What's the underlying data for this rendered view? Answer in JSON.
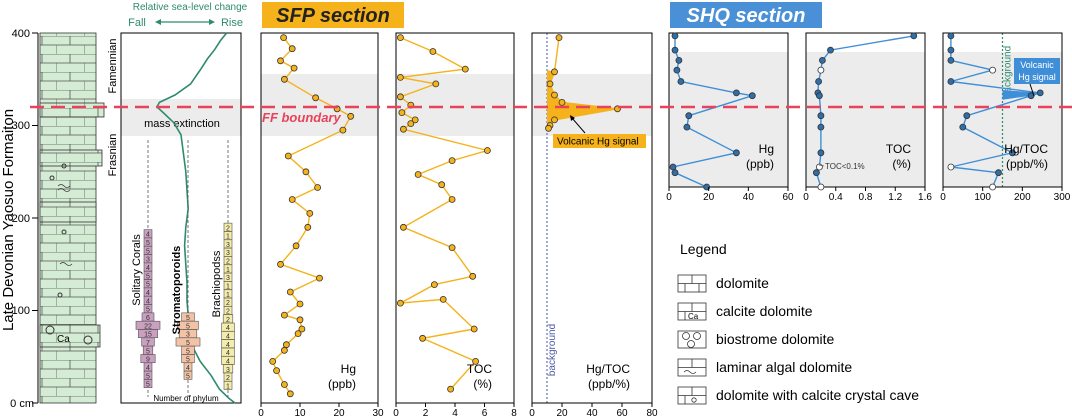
{
  "colors": {
    "sfp_line": "#f5b21a",
    "sfp_title_bg": "#f5b21a",
    "shq_line": "#3f8fd8",
    "shq_title_bg": "#4a90d6",
    "boundary": "#e8425c",
    "green_curve": "#2e8b6e",
    "litho_fill": "#d4ecd4",
    "grey_band": "#ececec",
    "corals": "#caa0c0",
    "stroma": "#f3c3a6",
    "brachio": "#f3ecaa",
    "background_line_sfp": "#4a5aa8",
    "background_line_shq": "#2e8b6e",
    "volcanic_shq": "#3f8fd8"
  },
  "depth_axis": {
    "label": "Late Devonian Yaosuo Formaiton",
    "ticks": [
      "400",
      "300",
      "200",
      "100",
      "0 cm"
    ],
    "stage_upper": "Famennian",
    "stage_lower": "Frasnian"
  },
  "sealevel": {
    "title": "Relative sea-level change",
    "fall": "Fall",
    "rise": "Rise",
    "extinction": "mass extinction",
    "phylum_axis": "Number of phylum",
    "corals_label": "Solitary Corals",
    "stroma_label": "Stromatoporoids",
    "brachio_label": "Brachiopodss",
    "curve": [
      [
        400,
        0.88
      ],
      [
        392,
        0.83
      ],
      [
        382,
        0.78
      ],
      [
        372,
        0.72
      ],
      [
        360,
        0.66
      ],
      [
        345,
        0.58
      ],
      [
        333,
        0.45
      ],
      [
        325,
        0.32
      ],
      [
        320,
        0.3
      ],
      [
        313,
        0.36
      ],
      [
        303,
        0.44
      ],
      [
        290,
        0.5
      ],
      [
        270,
        0.52
      ],
      [
        250,
        0.54
      ],
      [
        230,
        0.55
      ],
      [
        210,
        0.56
      ],
      [
        190,
        0.54
      ],
      [
        170,
        0.53
      ],
      [
        150,
        0.54
      ],
      [
        130,
        0.55
      ],
      [
        110,
        0.55
      ],
      [
        95,
        0.56
      ],
      [
        80,
        0.56
      ],
      [
        60,
        0.6
      ],
      [
        45,
        0.66
      ],
      [
        30,
        0.75
      ],
      [
        15,
        0.82
      ],
      [
        5,
        0.9
      ],
      [
        0,
        0.95
      ]
    ],
    "corals": [
      {
        "d": 183,
        "v": "4",
        "w": 1
      },
      {
        "d": 174,
        "v": "5",
        "w": 1
      },
      {
        "d": 165,
        "v": "5",
        "w": 1
      },
      {
        "d": 156,
        "v": "3",
        "w": 1
      },
      {
        "d": 147,
        "v": "4",
        "w": 1
      },
      {
        "d": 138,
        "v": "5",
        "w": 1
      },
      {
        "d": 129,
        "v": "5",
        "w": 1
      },
      {
        "d": 120,
        "v": "4",
        "w": 1
      },
      {
        "d": 111,
        "v": "4",
        "w": 1
      },
      {
        "d": 102,
        "v": "5",
        "w": 1
      },
      {
        "d": 93,
        "v": "6",
        "w": 1.5
      },
      {
        "d": 84,
        "v": "22",
        "w": 3
      },
      {
        "d": 75,
        "v": "15",
        "w": 2.4
      },
      {
        "d": 66,
        "v": "7",
        "w": 1.6
      },
      {
        "d": 57,
        "v": "5",
        "w": 1.2
      },
      {
        "d": 48,
        "v": "9",
        "w": 1.8
      },
      {
        "d": 39,
        "v": "4",
        "w": 1
      },
      {
        "d": 30,
        "v": "5",
        "w": 1
      },
      {
        "d": 21,
        "v": "5",
        "w": 1
      }
    ],
    "stroma": [
      {
        "d": 93,
        "v": "5",
        "w": 1.6
      },
      {
        "d": 84,
        "v": "5",
        "w": 2.6
      },
      {
        "d": 75,
        "v": "3",
        "w": 2.2
      },
      {
        "d": 66,
        "v": "5",
        "w": 3
      },
      {
        "d": 57,
        "v": "5",
        "w": 1.6
      },
      {
        "d": 48,
        "v": "5",
        "w": 1.6
      },
      {
        "d": 39,
        "v": "4",
        "w": 1
      },
      {
        "d": 30,
        "v": "5",
        "w": 1
      }
    ],
    "brachio": [
      {
        "d": 190,
        "v": "2",
        "w": 1
      },
      {
        "d": 181,
        "v": "1",
        "w": 1
      },
      {
        "d": 172,
        "v": "3",
        "w": 1
      },
      {
        "d": 163,
        "v": "3",
        "w": 1
      },
      {
        "d": 154,
        "v": "2",
        "w": 1
      },
      {
        "d": 145,
        "v": "1",
        "w": 1
      },
      {
        "d": 136,
        "v": "3",
        "w": 1
      },
      {
        "d": 127,
        "v": "1",
        "w": 1
      },
      {
        "d": 118,
        "v": "1",
        "w": 1
      },
      {
        "d": 109,
        "v": "2",
        "w": 1
      },
      {
        "d": 100,
        "v": "2",
        "w": 1
      },
      {
        "d": 91,
        "v": "2",
        "w": 1.2
      },
      {
        "d": 82,
        "v": "4",
        "w": 1.6
      },
      {
        "d": 73,
        "v": "4",
        "w": 1.6
      },
      {
        "d": 64,
        "v": "4",
        "w": 1.6
      },
      {
        "d": 55,
        "v": "4",
        "w": 1.6
      },
      {
        "d": 46,
        "v": "4",
        "w": 1.6
      },
      {
        "d": 37,
        "v": "3",
        "w": 1.2
      },
      {
        "d": 28,
        "v": "2",
        "w": 1
      },
      {
        "d": 19,
        "v": "1",
        "w": 1
      }
    ]
  },
  "sfp": {
    "title": "SFP section",
    "ff_boundary": "FF boundary",
    "volcanic_label": "Volcanic Hg signal",
    "background_label": "background"
  },
  "shq": {
    "title": "SHQ section",
    "volcanic_label_1": "Volcanic",
    "volcanic_label_2": "Hg signal",
    "background_label": "background",
    "toc_note": "TOC<0.1%"
  },
  "legend": {
    "title": "Legend",
    "items": [
      "dolomite",
      "calcite dolomite",
      "biostrome dolomite",
      "laminar algal dolomite",
      "dolomite with calcite crystal cave"
    ],
    "ca": "Ca"
  },
  "chart_data": [
    {
      "type": "line",
      "section": "SFP",
      "id": "sfp_hg",
      "xlabel_1": "Hg",
      "xlabel_2": "(ppb)",
      "xlim": [
        0,
        30
      ],
      "ylim": [
        0,
        400
      ],
      "xticks": [
        "0",
        "10",
        "20",
        "30"
      ],
      "x": [
        5.8,
        8.0,
        5.0,
        8.5,
        6.0,
        14.0,
        19.5,
        23.0,
        21.0,
        7.0,
        11.5,
        14.5,
        8.0,
        12.5,
        12.0,
        9.0,
        5.0,
        15.0,
        7.5,
        10.0,
        6.0,
        10.0,
        10.5,
        9.5,
        6.5,
        6.0,
        3.0,
        4.0,
        6.0,
        7.5
      ],
      "y": [
        395,
        383,
        370,
        362,
        350,
        330,
        318,
        310,
        295,
        267,
        250,
        233,
        220,
        205,
        190,
        170,
        150,
        135,
        120,
        107,
        95,
        90,
        80,
        75,
        63,
        57,
        45,
        35,
        20,
        10
      ]
    },
    {
      "type": "line",
      "section": "SFP",
      "id": "sfp_toc",
      "xlabel_1": "TOC",
      "xlabel_2": "(%)",
      "xlim": [
        0,
        8
      ],
      "ylim": [
        0,
        400
      ],
      "xticks": [
        "0",
        "2",
        "4",
        "6",
        "8"
      ],
      "x": [
        0.3,
        2.5,
        4.7,
        0.3,
        2.7,
        0.3,
        1.0,
        0.4,
        1.3,
        1.0,
        0.5,
        6.2,
        3.8,
        1.5,
        3.1,
        3.8,
        0.5,
        3.8,
        5.2,
        2.6,
        0.3,
        3.2,
        5.3,
        1.8,
        5.4,
        3.7
      ],
      "y": [
        395,
        380,
        361,
        352,
        345,
        331,
        322,
        314,
        306,
        302,
        296,
        273,
        262,
        247,
        236,
        220,
        190,
        168,
        137,
        128,
        108,
        112,
        80,
        70,
        45,
        15
      ]
    },
    {
      "type": "line",
      "section": "SFP",
      "id": "sfp_hgtoc",
      "xlabel_1": "Hg/TOC",
      "xlabel_2": "(ppb/%)",
      "xlim": [
        0,
        80
      ],
      "ylim": [
        0,
        400
      ],
      "xticks": [
        "0",
        "20",
        "40",
        "60",
        "80"
      ],
      "x": [
        18.0,
        15.0,
        12.0,
        15.0,
        20.0,
        57.0,
        15.0,
        12.0,
        11.0
      ],
      "y": [
        395,
        358,
        345,
        333,
        325,
        318,
        306,
        300,
        297
      ],
      "note": "the profile sits near the background line below the boundary interval"
    },
    {
      "type": "line",
      "section": "SHQ",
      "id": "shq_hg",
      "xlabel_1": "Hg",
      "xlabel_2": "(ppb)",
      "xlim": [
        0,
        60
      ],
      "ylim": [
        0,
        400
      ],
      "xticks": [
        "0",
        "20",
        "40",
        "60"
      ],
      "x": [
        3.0,
        3.0,
        5.0,
        4.0,
        6.0,
        34.0,
        42.0,
        10.0,
        9.0,
        34.0,
        2.0,
        3.0,
        19.0
      ],
      "y": [
        395,
        370,
        352,
        335,
        315,
        295,
        290,
        255,
        235,
        190,
        165,
        155,
        130
      ]
    },
    {
      "type": "line",
      "section": "SHQ",
      "id": "shq_toc",
      "xlabel_1": "TOC",
      "xlabel_2": "(%)",
      "xlim": [
        0,
        1.6
      ],
      "ylim": [
        0,
        400
      ],
      "xticks": [
        "0",
        "0.4",
        "0.8",
        "1.2",
        "1.6"
      ],
      "x": [
        1.45,
        0.33,
        0.22,
        0.2,
        0.17,
        0.16,
        0.18,
        0.2,
        0.2,
        0.2,
        0.18,
        0.14,
        0.2
      ],
      "y": [
        395,
        370,
        352,
        335,
        315,
        295,
        290,
        255,
        235,
        190,
        165,
        155,
        130
      ]
    },
    {
      "type": "line",
      "section": "SHQ",
      "id": "shq_hgtoc",
      "xlabel_1": "Hg/TOC",
      "xlabel_2": "(ppb/%)",
      "xlim": [
        0,
        300
      ],
      "ylim": [
        0,
        400
      ],
      "xticks": [
        "0",
        "100",
        "200",
        "300"
      ],
      "x": [
        20.0,
        20.0,
        20.0,
        125.0,
        20.0,
        245.0,
        222.0,
        60.0,
        50.0,
        175.0,
        20.0,
        140.0,
        125.0
      ],
      "y": [
        395,
        370,
        352,
        335,
        315,
        295,
        290,
        255,
        235,
        190,
        165,
        155,
        130
      ]
    }
  ]
}
